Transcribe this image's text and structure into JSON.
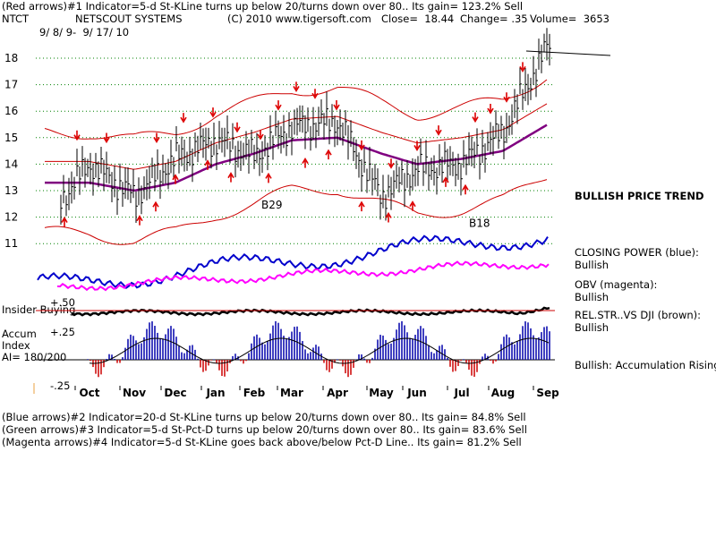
{
  "header": {
    "line1": "(Red arrows)#1 Indicator=5-d St-KLine turns up below 20/turns down over 80.. Its gain= 123.2% Sell",
    "ticker": "NTCT",
    "company": "NETSCOUT SYSTEMS",
    "copyright": "(C) 2010 www.tigersoft.com",
    "close": "Close=  18.44",
    "change": "Change= .35",
    "volume": "Volume=  3653",
    "dates": "9/ 8/ 9-  9/ 17/ 10"
  },
  "right_labels": {
    "trend": "BULLISH PRICE TREND",
    "cp_title": "CLOSING POWER (blue):",
    "cp_value": "Bullish",
    "obv_title": "OBV (magenta):",
    "obv_value": "Bullish",
    "rs_title": "REL.STR..VS DJI (brown):",
    "rs_value": "Bullish",
    "accum_text": "Bullish: Accumulation Rising"
  },
  "left_labels": {
    "insider": "Insider Buying",
    "plus50": "+.50",
    "plus25": "+.25",
    "accum": "Accum",
    "index": "Index",
    "ai": "AI= 180/200",
    "minus25": "-.25"
  },
  "annotations": {
    "b29": "B29",
    "b18": "B18"
  },
  "footer": {
    "line2": "(Blue arrows)#2 Indicator=20-d St-KLine turns up below 20/turns down over 80.. Its gain= 84.8% Sell",
    "line3": "(Green arrows)#3 Indicator=5-d St-Pct-D turns up below 20/turns down over 80.. Its gain= 83.6% Sell",
    "line4": "(Magenta arrows)#4 Indicator=5-d St-KLine goes back above/below Pct-D Line.. Its gain= 81.2% Sell"
  },
  "colors": {
    "price_bar": "#000000",
    "bollinger": "#cc0000",
    "moving_average": "#800080",
    "closing_power": "#0000cc",
    "obv": "#ff00ff",
    "rel_strength": "#000000",
    "accum_bars": "#0000aa",
    "accum_negative": "#cc0000",
    "arrow": "#dd0000",
    "gridline": "#008000"
  },
  "chart_data": {
    "type": "line",
    "title": "NETSCOUT SYSTEMS",
    "xlabel": "",
    "ylabel": "",
    "ylim": [
      11,
      18.5
    ],
    "yticks": [
      11,
      12,
      13,
      14,
      15,
      16,
      17,
      18
    ],
    "x_ticks": [
      "Oct",
      "Nov",
      "Dec",
      "Jan",
      "Feb",
      "Mar",
      "Apr",
      "May",
      "Jun",
      "Jul",
      "Aug",
      "Sep"
    ],
    "grid": true,
    "series": [
      {
        "name": "price",
        "x": [
          "Sep",
          "Oct",
          "Nov",
          "Dec",
          "Jan",
          "Feb",
          "Mar",
          "Apr",
          "May",
          "Jun",
          "Jul",
          "Aug",
          "Sep"
        ],
        "values": [
          11.5,
          14.0,
          12.8,
          14.2,
          14.9,
          14.3,
          15.4,
          15.6,
          12.8,
          13.8,
          14.0,
          15.2,
          18.44
        ]
      },
      {
        "name": "moving average",
        "values": [
          13.3,
          13.3,
          13.0,
          13.3,
          14.0,
          14.4,
          14.9,
          15.0,
          14.4,
          14.0,
          14.2,
          14.5,
          15.5
        ]
      }
    ],
    "annotations": [
      {
        "text": "B29",
        "x": "Feb",
        "y": 12.6
      },
      {
        "text": "B18",
        "x": "Jul",
        "y": 11.9
      }
    ]
  }
}
